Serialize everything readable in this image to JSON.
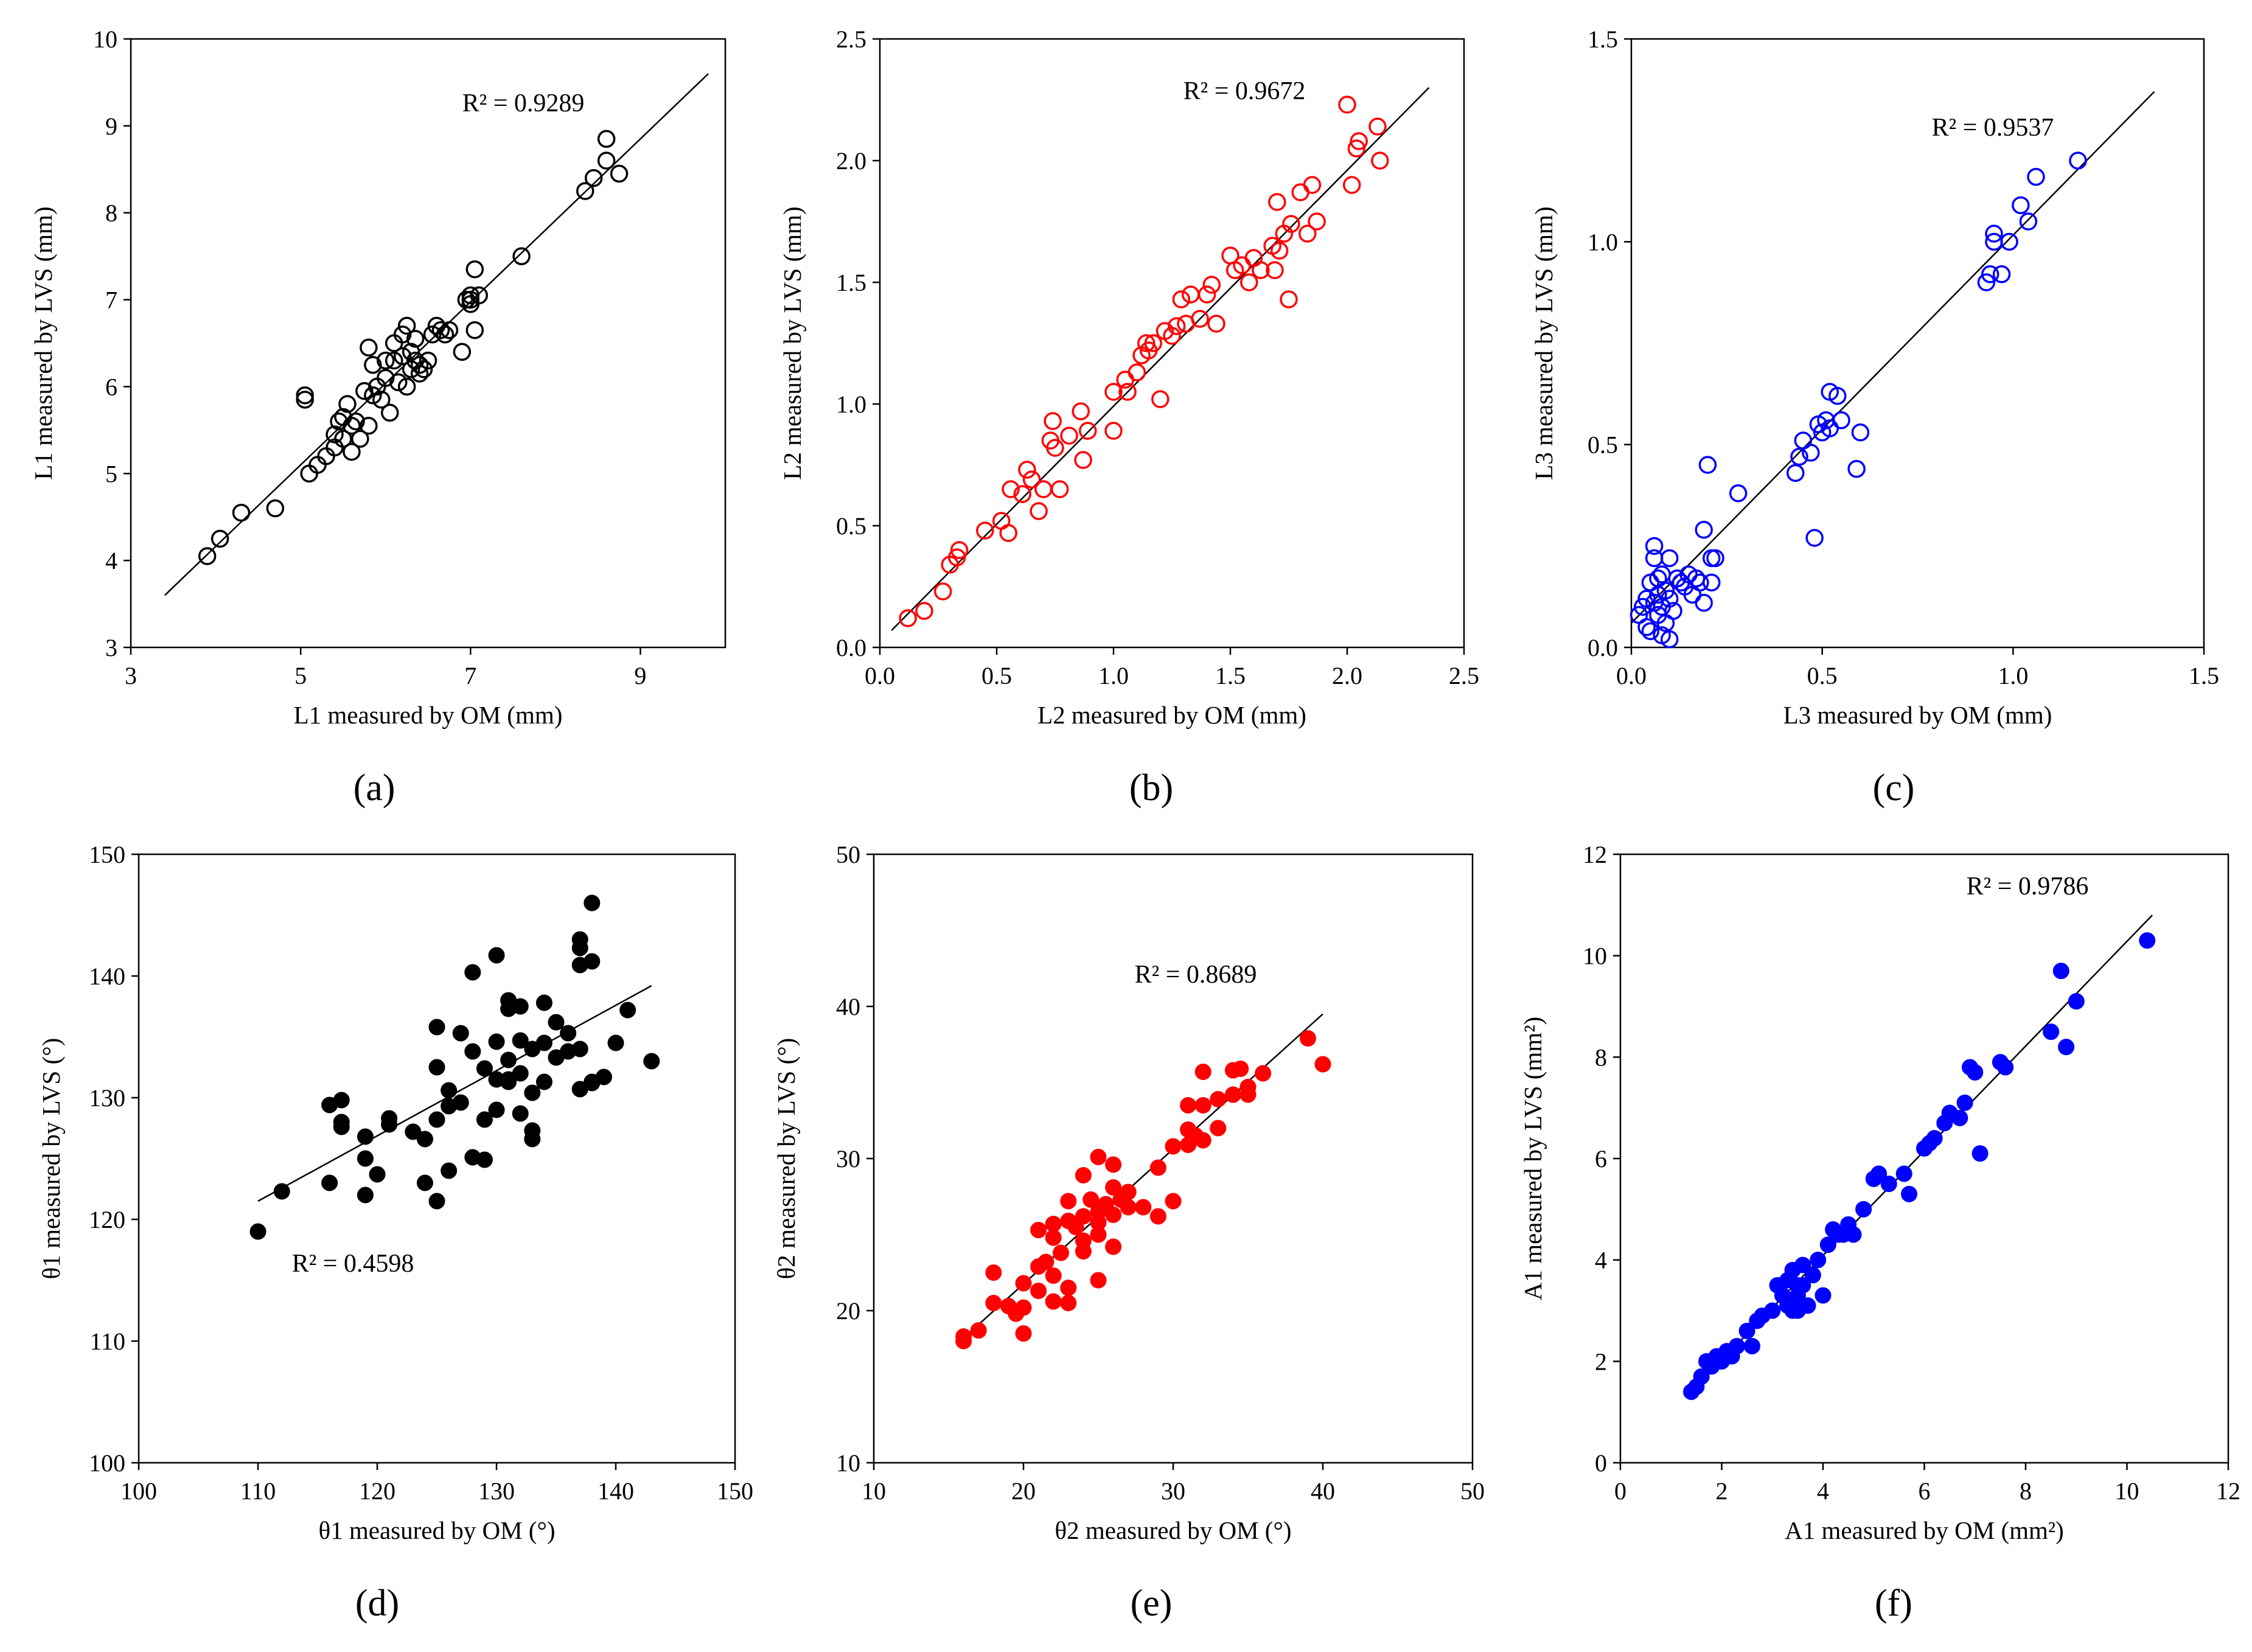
{
  "chart_data": [
    {
      "id": "a",
      "type": "scatter",
      "panel_label": "(a)",
      "xlabel": "L1 measured by OM (mm)",
      "ylabel": "L1 measured by LVS (mm)",
      "xlim": [
        3,
        10
      ],
      "ylim": [
        3,
        10
      ],
      "xticks": [
        "3",
        "5",
        "7",
        "9"
      ],
      "xtick_values": [
        3,
        5,
        7,
        9
      ],
      "yticks": [
        "3",
        "4",
        "5",
        "6",
        "7",
        "8",
        "9",
        "10"
      ],
      "ytick_values": [
        3,
        4,
        5,
        6,
        7,
        8,
        9,
        10
      ],
      "r2_label": "R² = 0.9289",
      "marker": "open-circle",
      "color": "#000000",
      "trendline": [
        [
          3.4,
          3.6
        ],
        [
          9.8,
          9.6
        ]
      ],
      "x": [
        3.9,
        4.05,
        4.3,
        4.7,
        5.05,
        5.05,
        5.1,
        5.2,
        5.3,
        5.4,
        5.4,
        5.45,
        5.5,
        5.5,
        5.55,
        5.6,
        5.6,
        5.65,
        5.7,
        5.75,
        5.8,
        5.8,
        5.85,
        5.85,
        5.9,
        5.95,
        6.0,
        6.0,
        6.05,
        6.1,
        6.1,
        6.15,
        6.2,
        6.2,
        6.25,
        6.25,
        6.3,
        6.3,
        6.35,
        6.35,
        6.4,
        6.4,
        6.45,
        6.5,
        6.55,
        6.6,
        6.65,
        6.7,
        6.75,
        6.9,
        6.95,
        7.0,
        7.0,
        7.0,
        7.05,
        7.05,
        7.1,
        7.6,
        8.35,
        8.45,
        8.6,
        8.6,
        8.75
      ],
      "y": [
        4.05,
        4.25,
        4.55,
        4.6,
        5.85,
        5.9,
        5.0,
        5.1,
        5.2,
        5.3,
        5.45,
        5.6,
        5.4,
        5.65,
        5.8,
        5.25,
        5.55,
        5.6,
        5.4,
        5.95,
        5.55,
        6.45,
        5.9,
        6.25,
        6.0,
        5.85,
        6.1,
        6.3,
        5.7,
        6.3,
        6.5,
        6.05,
        6.6,
        6.35,
        6.0,
        6.7,
        6.2,
        6.4,
        6.3,
        6.55,
        6.15,
        6.25,
        6.2,
        6.3,
        6.6,
        6.7,
        6.65,
        6.6,
        6.65,
        6.4,
        7.0,
        6.95,
        7.05,
        7.0,
        7.35,
        6.65,
        7.05,
        7.5,
        8.25,
        8.4,
        8.85,
        8.6,
        8.45
      ]
    },
    {
      "id": "b",
      "type": "scatter",
      "panel_label": "(b)",
      "xlabel": "L2 measured by OM (mm)",
      "ylabel": "L2 measured by LVS (mm)",
      "xlim": [
        0,
        2.5
      ],
      "ylim": [
        0,
        2.5
      ],
      "xticks": [
        "0.0",
        "0.5",
        "1.0",
        "1.5",
        "2.0",
        "2.5"
      ],
      "xtick_values": [
        0,
        0.5,
        1.0,
        1.5,
        2.0,
        2.5
      ],
      "yticks": [
        "0.0",
        "0.5",
        "1.0",
        "1.5",
        "2.0",
        "2.5"
      ],
      "ytick_values": [
        0,
        0.5,
        1.0,
        1.5,
        2.0,
        2.5
      ],
      "r2_label": "R² = 0.9672",
      "marker": "open-circle",
      "color": "#ff0000",
      "trendline": [
        [
          0.05,
          0.07
        ],
        [
          2.35,
          2.3
        ]
      ],
      "x": [
        0.12,
        0.19,
        0.27,
        0.3,
        0.33,
        0.34,
        0.45,
        0.52,
        0.55,
        0.56,
        0.61,
        0.63,
        0.65,
        0.68,
        0.7,
        0.73,
        0.74,
        0.75,
        0.77,
        0.81,
        0.86,
        0.87,
        0.89,
        1.0,
        1.0,
        1.05,
        1.06,
        1.1,
        1.12,
        1.14,
        1.15,
        1.17,
        1.2,
        1.22,
        1.25,
        1.27,
        1.29,
        1.31,
        1.33,
        1.37,
        1.4,
        1.42,
        1.44,
        1.5,
        1.52,
        1.55,
        1.58,
        1.6,
        1.63,
        1.68,
        1.69,
        1.7,
        1.71,
        1.73,
        1.75,
        1.76,
        1.8,
        1.83,
        1.85,
        1.87,
        2.0,
        2.02,
        2.04,
        2.05,
        2.13,
        2.14
      ],
      "y": [
        0.12,
        0.15,
        0.23,
        0.34,
        0.37,
        0.4,
        0.48,
        0.52,
        0.47,
        0.65,
        0.63,
        0.73,
        0.69,
        0.56,
        0.65,
        0.85,
        0.93,
        0.82,
        0.65,
        0.87,
        0.97,
        0.77,
        0.89,
        1.05,
        0.89,
        1.1,
        1.05,
        1.13,
        1.2,
        1.25,
        1.22,
        1.25,
        1.02,
        1.3,
        1.28,
        1.32,
        1.43,
        1.33,
        1.45,
        1.35,
        1.45,
        1.49,
        1.33,
        1.61,
        1.55,
        1.57,
        1.5,
        1.6,
        1.55,
        1.65,
        1.55,
        1.83,
        1.63,
        1.7,
        1.43,
        1.74,
        1.87,
        1.7,
        1.9,
        1.75,
        2.23,
        1.9,
        2.05,
        2.08,
        2.14,
        2.0
      ]
    },
    {
      "id": "c",
      "type": "scatter",
      "panel_label": "(c)",
      "xlabel": "L3 measured by OM (mm)",
      "ylabel": "L3 measured by LVS (mm)",
      "xlim": [
        0,
        1.5
      ],
      "ylim": [
        0,
        1.5
      ],
      "xticks": [
        "0.0",
        "0.5",
        "1.0",
        "1.5"
      ],
      "xtick_values": [
        0,
        0.5,
        1.0,
        1.5
      ],
      "yticks": [
        "0.0",
        "0.5",
        "1.0",
        "1.5"
      ],
      "ytick_values": [
        0,
        0.5,
        1.0,
        1.5
      ],
      "r2_label": "R² = 0.9537",
      "marker": "open-circle",
      "color": "#0000ff",
      "trendline": [
        [
          0.0,
          0.06
        ],
        [
          1.37,
          1.37
        ]
      ],
      "x": [
        0.02,
        0.03,
        0.04,
        0.04,
        0.05,
        0.05,
        0.06,
        0.06,
        0.06,
        0.07,
        0.07,
        0.07,
        0.08,
        0.08,
        0.08,
        0.09,
        0.09,
        0.1,
        0.1,
        0.1,
        0.11,
        0.12,
        0.13,
        0.14,
        0.15,
        0.16,
        0.17,
        0.18,
        0.19,
        0.19,
        0.2,
        0.21,
        0.21,
        0.22,
        0.28,
        0.43,
        0.44,
        0.45,
        0.47,
        0.48,
        0.49,
        0.5,
        0.51,
        0.52,
        0.52,
        0.54,
        0.55,
        0.59,
        0.6,
        0.93,
        0.94,
        0.95,
        0.95,
        0.97,
        0.99,
        1.02,
        1.04,
        1.06,
        1.17
      ],
      "y": [
        0.08,
        0.1,
        0.05,
        0.12,
        0.04,
        0.16,
        0.11,
        0.25,
        0.22,
        0.08,
        0.17,
        0.13,
        0.03,
        0.1,
        0.18,
        0.06,
        0.14,
        0.02,
        0.12,
        0.22,
        0.09,
        0.17,
        0.16,
        0.15,
        0.18,
        0.13,
        0.17,
        0.16,
        0.11,
        0.29,
        0.45,
        0.22,
        0.16,
        0.22,
        0.38,
        0.43,
        0.47,
        0.51,
        0.48,
        0.27,
        0.55,
        0.53,
        0.56,
        0.63,
        0.54,
        0.62,
        0.56,
        0.44,
        0.53,
        0.9,
        0.92,
        1.0,
        1.02,
        0.92,
        1.0,
        1.09,
        1.05,
        1.16,
        1.2
      ]
    },
    {
      "id": "d",
      "type": "scatter",
      "panel_label": "(d)",
      "xlabel": "θ1 measured by OM (°)",
      "ylabel": "θ1 measured by LVS (°)",
      "xlim": [
        100,
        150
      ],
      "ylim": [
        100,
        150
      ],
      "xticks": [
        "100",
        "110",
        "120",
        "130",
        "140",
        "150"
      ],
      "xtick_values": [
        100,
        110,
        120,
        130,
        140,
        150
      ],
      "yticks": [
        "100",
        "110",
        "120",
        "130",
        "140",
        "150"
      ],
      "ytick_values": [
        100,
        110,
        120,
        130,
        140,
        150
      ],
      "r2_label": "R² = 0.4598",
      "marker": "filled-circle",
      "color": "#000000",
      "trendline": [
        [
          110,
          121.5
        ],
        [
          143,
          139.2
        ]
      ],
      "x": [
        110,
        112,
        116,
        116,
        117,
        117,
        117,
        119,
        119,
        119,
        120,
        121,
        121,
        123,
        124,
        124,
        125,
        125,
        125,
        125,
        126,
        126,
        126,
        127,
        127,
        128,
        128,
        128,
        129,
        129,
        129,
        130,
        130,
        130,
        130,
        131,
        131,
        131,
        131,
        131,
        132,
        132,
        132,
        132,
        133,
        133,
        133,
        133,
        134,
        134,
        134,
        135,
        135,
        136,
        136,
        137,
        137,
        137,
        137,
        137,
        138,
        138,
        138,
        138,
        139,
        140,
        141,
        143
      ],
      "y": [
        119,
        122.3,
        129.4,
        123,
        129.8,
        128,
        127.6,
        126.8,
        125,
        122,
        123.7,
        127.8,
        128.3,
        127.2,
        126.6,
        123,
        132.5,
        135.8,
        128.2,
        121.5,
        130.6,
        129.3,
        124,
        135.3,
        129.6,
        140.3,
        125.1,
        133.8,
        132.4,
        124.9,
        128.2,
        141.7,
        134.6,
        131.5,
        129,
        138,
        137.3,
        133.1,
        131.5,
        131.3,
        137.5,
        134.7,
        128.7,
        132,
        127.3,
        126.6,
        130.4,
        134,
        137.8,
        131.3,
        134.5,
        136.2,
        133.3,
        133.8,
        135.3,
        143,
        142.3,
        140.9,
        134,
        130.7,
        146,
        141.2,
        131.3,
        131.2,
        131.7,
        134.5,
        137.2,
        133
      ]
    },
    {
      "id": "e",
      "type": "scatter",
      "panel_label": "(e)",
      "xlabel": "θ2 measured by OM (°)",
      "ylabel": "θ2 measured by LVS (°)",
      "xlim": [
        10,
        50
      ],
      "ylim": [
        10,
        50
      ],
      "xticks": [
        "10",
        "20",
        "30",
        "40",
        "50"
      ],
      "xtick_values": [
        10,
        20,
        30,
        40,
        50
      ],
      "yticks": [
        "10",
        "20",
        "30",
        "40",
        "50"
      ],
      "ytick_values": [
        10,
        20,
        30,
        40,
        50
      ],
      "r2_label": "R² = 0.8689",
      "marker": "filled-circle",
      "color": "#ff0000",
      "trendline": [
        [
          16,
          18.2
        ],
        [
          40,
          39.5
        ]
      ],
      "x": [
        16,
        16,
        17,
        18,
        18,
        19,
        19.5,
        20,
        20,
        20,
        21,
        21,
        21,
        21.5,
        22,
        22,
        22,
        22,
        22.5,
        23,
        23,
        23,
        23,
        23.5,
        24,
        24,
        24,
        24,
        24.5,
        25,
        25,
        25,
        25,
        25,
        25.5,
        26,
        26,
        26,
        26,
        26.5,
        27,
        27,
        28,
        29,
        29,
        30,
        30,
        31,
        31,
        31,
        31.5,
        32,
        32,
        32,
        33,
        33,
        34,
        34,
        34.5,
        35,
        35,
        36,
        39,
        40
      ],
      "y": [
        18,
        18.3,
        18.7,
        20.5,
        22.5,
        20.3,
        19.8,
        18.5,
        21.8,
        20.2,
        25.3,
        22.9,
        21.3,
        23.2,
        25.7,
        24.8,
        22.3,
        20.6,
        23.8,
        27.2,
        25.9,
        21.5,
        20.5,
        25.5,
        28.9,
        26.2,
        24.6,
        23.9,
        27.3,
        30.1,
        26.5,
        25,
        25.8,
        22,
        27,
        29.6,
        26.3,
        24.2,
        28.1,
        27.3,
        27.8,
        26.8,
        26.8,
        29.4,
        26.2,
        30.8,
        27.2,
        33.5,
        31.9,
        30.9,
        31.5,
        35.7,
        33.5,
        31.2,
        33.9,
        32,
        35.8,
        34.2,
        35.9,
        34.7,
        34.2,
        35.6,
        37.9,
        36.2
      ]
    },
    {
      "id": "f",
      "type": "scatter",
      "panel_label": "(f)",
      "xlabel": "A1 measured by OM (mm²)",
      "ylabel": "A1 measured by LVS (mm²)",
      "xlim": [
        0,
        12
      ],
      "ylim": [
        0,
        12
      ],
      "xticks": [
        "0",
        "2",
        "4",
        "6",
        "8",
        "10",
        "12"
      ],
      "xtick_values": [
        0,
        2,
        4,
        6,
        8,
        10,
        12
      ],
      "yticks": [
        "0",
        "2",
        "4",
        "6",
        "8",
        "10",
        "12"
      ],
      "ytick_values": [
        0,
        2,
        4,
        6,
        8,
        10,
        12
      ],
      "r2_label": "R² = 0.9786",
      "marker": "filled-circle",
      "color": "#0000ff",
      "trendline": [
        [
          1.3,
          1.3
        ],
        [
          10.5,
          10.8
        ]
      ],
      "x": [
        1.4,
        1.5,
        1.6,
        1.7,
        1.8,
        1.9,
        2.0,
        2.1,
        2.2,
        2.3,
        2.5,
        2.6,
        2.7,
        2.8,
        3.0,
        3.1,
        3.2,
        3.3,
        3.3,
        3.4,
        3.4,
        3.5,
        3.5,
        3.5,
        3.6,
        3.6,
        3.7,
        3.8,
        3.9,
        4.0,
        4.1,
        4.2,
        4.3,
        4.4,
        4.5,
        4.5,
        4.6,
        4.8,
        5.0,
        5.1,
        5.3,
        5.6,
        5.7,
        6.0,
        6.1,
        6.2,
        6.4,
        6.5,
        6.7,
        6.8,
        6.9,
        7.0,
        7.1,
        7.5,
        7.6,
        8.5,
        8.7,
        8.8,
        9.0,
        10.4
      ],
      "y": [
        1.4,
        1.5,
        1.7,
        2.0,
        1.9,
        2.1,
        2.0,
        2.2,
        2.1,
        2.3,
        2.6,
        2.3,
        2.8,
        2.9,
        3.0,
        3.5,
        3.3,
        3.6,
        3.1,
        3.8,
        3.0,
        3.5,
        3.3,
        3.0,
        3.9,
        3.5,
        3.1,
        3.7,
        4.0,
        3.3,
        4.3,
        4.6,
        4.5,
        4.5,
        4.7,
        4.6,
        4.5,
        5.0,
        5.6,
        5.7,
        5.5,
        5.7,
        5.3,
        6.2,
        6.3,
        6.4,
        6.7,
        6.9,
        6.8,
        7.1,
        7.8,
        7.7,
        6.1,
        7.9,
        7.8,
        8.5,
        9.7,
        8.2,
        9.1,
        10.3
      ]
    }
  ]
}
